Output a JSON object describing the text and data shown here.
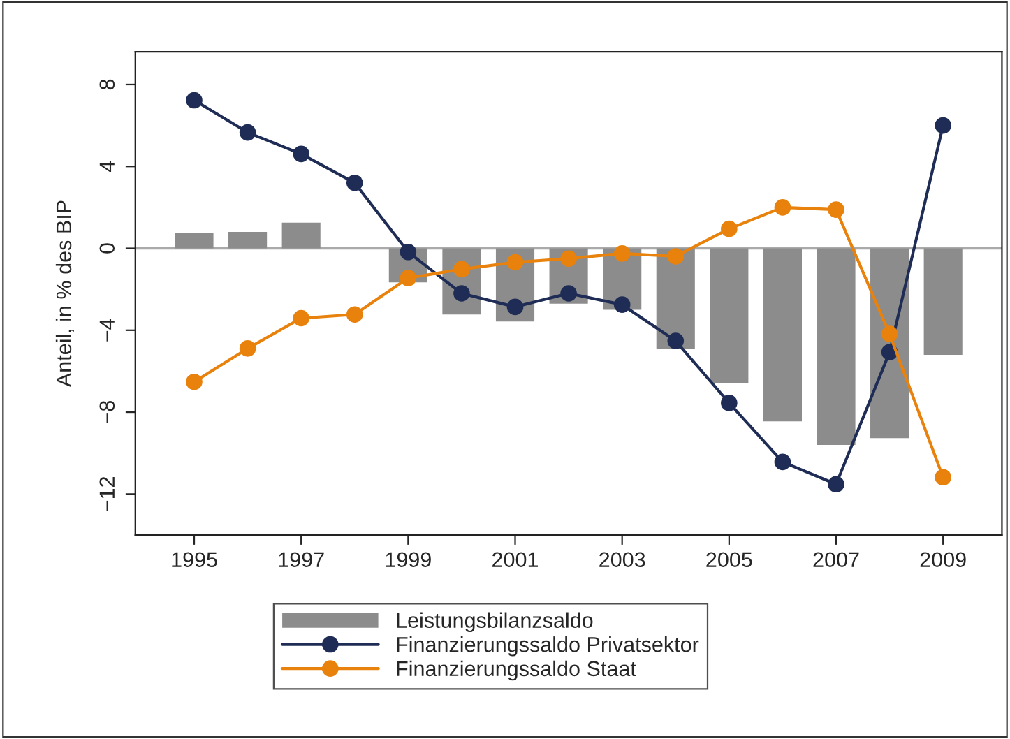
{
  "chart_data": {
    "type": "bar",
    "ylabel": "Anteil, in % des BIP",
    "x": [
      1995,
      1996,
      1997,
      1998,
      1999,
      2000,
      2001,
      2002,
      2003,
      2004,
      2005,
      2006,
      2007,
      2008,
      2009
    ],
    "series": [
      {
        "name": "Leistungsbilanzsaldo",
        "color": "#8c8c8c",
        "values": [
          0.75,
          0.8,
          1.25,
          null,
          -1.66,
          -3.23,
          -3.57,
          -2.7,
          -3.0,
          -4.9,
          -6.6,
          -8.45,
          -9.6,
          -9.27,
          -5.2
        ]
      },
      {
        "name": "Finanzierungssaldo Privatsektor",
        "type": "line",
        "color": "#1f2d56",
        "values": [
          7.23,
          5.66,
          4.61,
          3.2,
          -0.18,
          -2.2,
          -2.86,
          -2.2,
          -2.75,
          -4.52,
          -7.55,
          -10.43,
          -11.52,
          -5.07,
          6.0
        ]
      },
      {
        "name": "Finanzierungssaldo Staat",
        "type": "line",
        "color": "#e8820c",
        "values": [
          -6.52,
          -4.89,
          -3.41,
          -3.23,
          -1.45,
          -1.02,
          -0.68,
          -0.5,
          -0.25,
          -0.39,
          0.95,
          2.0,
          1.89,
          -4.18,
          -11.18
        ]
      }
    ],
    "xlim": [
      1993.9,
      2010.1
    ],
    "xticks": [
      1995,
      1997,
      1999,
      2001,
      2003,
      2005,
      2007,
      2009
    ],
    "ylim": [
      -14,
      9.6
    ],
    "yticks": [
      {
        "value": -12,
        "label": "−12"
      },
      {
        "value": -8,
        "label": "−8"
      },
      {
        "value": -4,
        "label": "−4"
      },
      0,
      4,
      8
    ],
    "ref_lines": [
      {
        "axis": "y",
        "value": 0,
        "color": "#aaaaaa"
      }
    ],
    "marker": "circle",
    "line_style": "solid",
    "grid": false,
    "legend": "bottom"
  }
}
